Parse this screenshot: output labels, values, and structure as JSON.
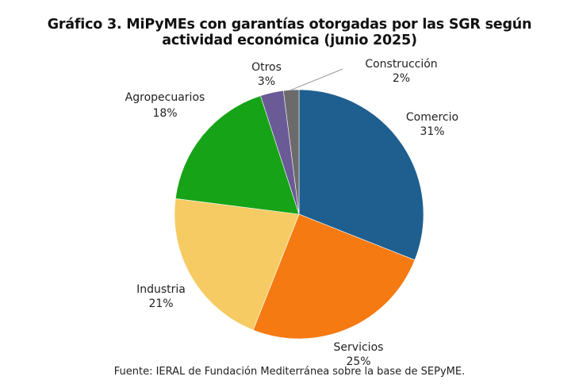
{
  "title_line1": "Gráfico 3. MiPyMEs con garantías otorgadas por las SGR según",
  "title_line2": "actividad económica (junio 2025)",
  "source": "Fuente: IERAL de Fundación Mediterránea sobre la base de SEPyME.",
  "chart_data": {
    "type": "pie",
    "title": "Gráfico 3. MiPyMEs con garantías otorgadas por las SGR según actividad económica (junio 2025)",
    "start_angle": "top, clockwise",
    "slices": [
      {
        "label": "Comercio",
        "value": 31,
        "value_label": "31%",
        "color": "#1f5f8f"
      },
      {
        "label": "Servicios",
        "value": 25,
        "value_label": "25%",
        "color": "#f57a12"
      },
      {
        "label": "Industria",
        "value": 21,
        "value_label": "21%",
        "color": "#f6cb64"
      },
      {
        "label": "Agropecuarios",
        "value": 18,
        "value_label": "18%",
        "color": "#17a317"
      },
      {
        "label": "Otros",
        "value": 3,
        "value_label": "3%",
        "color": "#6a5a96"
      },
      {
        "label": "Construcción",
        "value": 2,
        "value_label": "2%",
        "color": "#6b6b6b"
      }
    ]
  }
}
